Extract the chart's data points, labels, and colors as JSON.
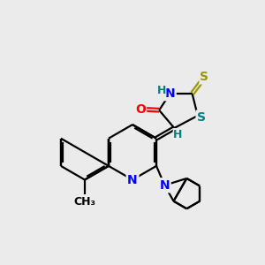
{
  "bg_color": "#ebebeb",
  "bond_color": "#000000",
  "N_color": "#0000ff",
  "O_color": "#ff0000",
  "S_yellow_color": "#999900",
  "S_teal_color": "#008080",
  "H_color": "#008080",
  "font_size": 10,
  "lw": 1.6,
  "figsize": [
    3.0,
    3.0
  ],
  "dpi": 100,
  "xlim": [
    0,
    10
  ],
  "ylim": [
    0,
    10
  ]
}
